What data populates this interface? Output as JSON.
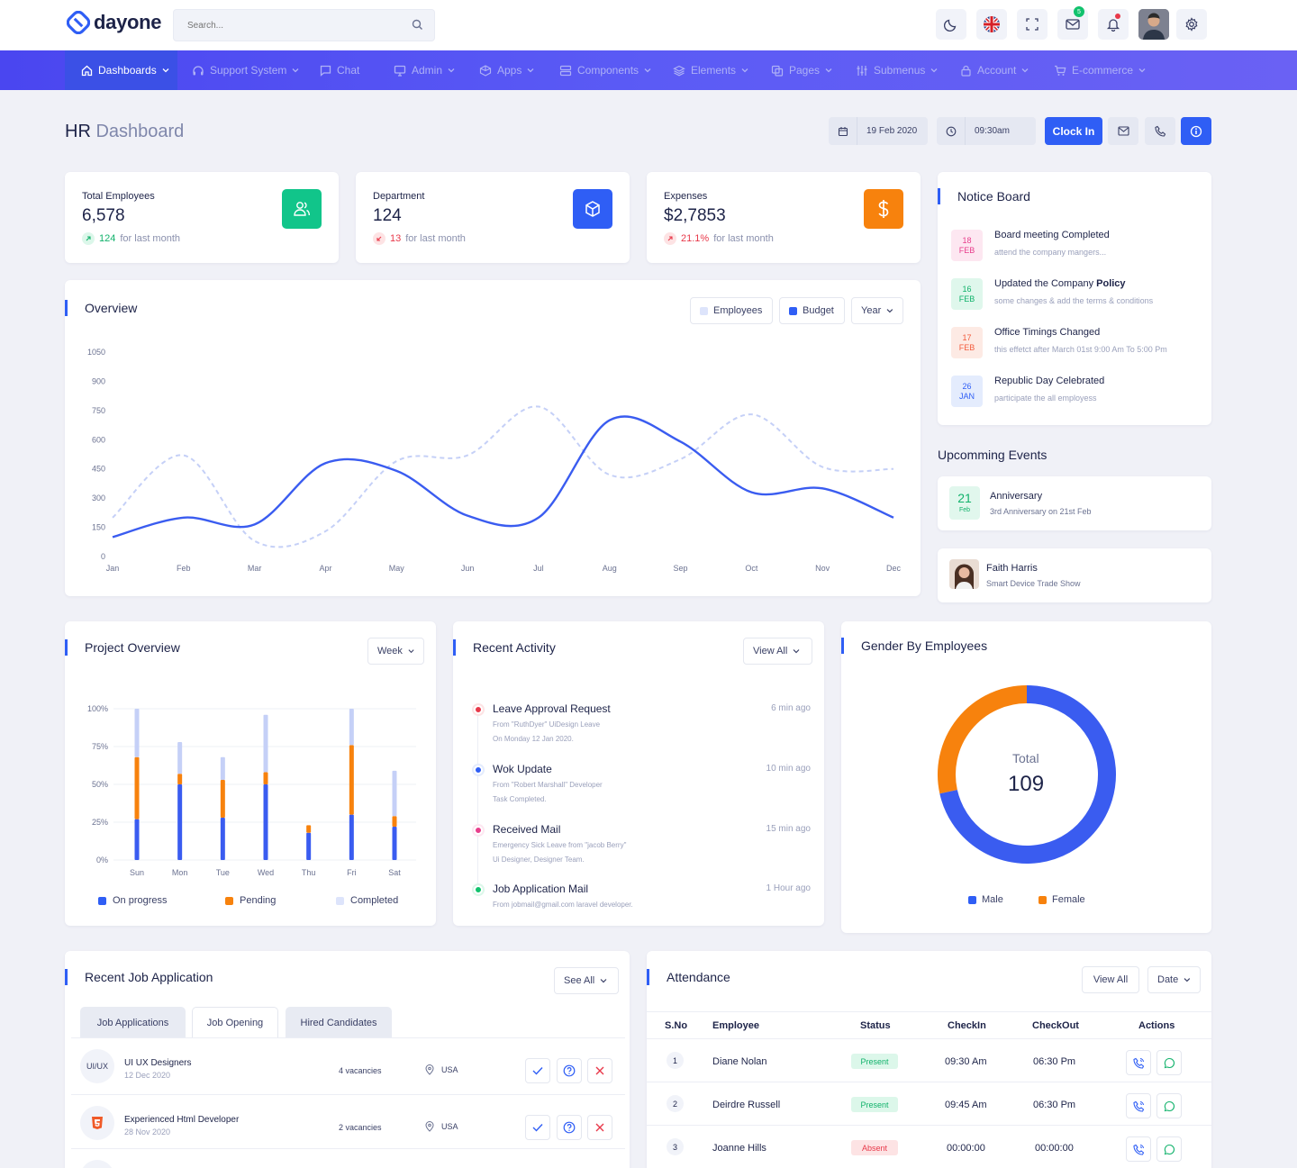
{
  "header": {
    "logo_text": "dayone",
    "search_placeholder": "Search...",
    "mail_badge": "5",
    "icons": [
      "moon-icon",
      "flag-uk-icon",
      "fullscreen-icon",
      "mail-icon",
      "bell-icon",
      "avatar",
      "gear-icon"
    ]
  },
  "nav": {
    "items": [
      {
        "label": "Dashboards",
        "icon": "home-icon",
        "active": true
      },
      {
        "label": "Support System",
        "icon": "headset-icon"
      },
      {
        "label": "Chat",
        "icon": "chat-icon"
      },
      {
        "label": "Admin",
        "icon": "monitor-icon"
      },
      {
        "label": "Apps",
        "icon": "apps-icon"
      },
      {
        "label": "Components",
        "icon": "layers-icon"
      },
      {
        "label": "Elements",
        "icon": "stack-icon"
      },
      {
        "label": "Pages",
        "icon": "pages-icon"
      },
      {
        "label": "Submenus",
        "icon": "sliders-icon"
      },
      {
        "label": "Account",
        "icon": "lock-icon"
      },
      {
        "label": "E-commerce",
        "icon": "cart-icon"
      }
    ]
  },
  "page": {
    "title_main": "HR",
    "title_rest": "Dashboard",
    "date": "19 Feb 2020",
    "time": "09:30am",
    "clock_in": "Clock In"
  },
  "stats": [
    {
      "label": "Total Employees",
      "value": "6,578",
      "delta": "124",
      "delta_suffix": "for last month",
      "trend": "up",
      "color": "#11c58a"
    },
    {
      "label": "Department",
      "value": "124",
      "delta": "13",
      "delta_suffix": "for last month",
      "trend": "down",
      "color": "#2f5ef5"
    },
    {
      "label": "Expenses",
      "value": "$2,7853",
      "delta": "21.1%",
      "delta_suffix": "for last month",
      "trend": "up-red",
      "color": "#f7820d"
    }
  ],
  "overview": {
    "title": "Overview",
    "legend_employees": "Employees",
    "legend_budget": "Budget",
    "range": "Year"
  },
  "chart_data": [
    {
      "type": "line",
      "title": "Overview",
      "categories": [
        "Jan",
        "Feb",
        "Mar",
        "Apr",
        "May",
        "Jun",
        "Jul",
        "Aug",
        "Sep",
        "Oct",
        "Nov",
        "Dec"
      ],
      "ylim": [
        0,
        1050
      ],
      "yticks": [
        0,
        150,
        300,
        450,
        600,
        750,
        900,
        1050
      ],
      "series": [
        {
          "name": "Budget",
          "color": "#3a5cf0",
          "dashed": false,
          "values": [
            100,
            200,
            165,
            480,
            440,
            210,
            200,
            700,
            590,
            330,
            350,
            200
          ]
        },
        {
          "name": "Employees",
          "color": "#c5d0f7",
          "dashed": true,
          "values": [
            200,
            520,
            80,
            130,
            490,
            520,
            770,
            420,
            500,
            730,
            460,
            450
          ]
        }
      ]
    },
    {
      "type": "bar",
      "title": "Project Overview",
      "categories": [
        "Sun",
        "Mon",
        "Tue",
        "Wed",
        "Thu",
        "Fri",
        "Sat"
      ],
      "ylim": [
        0,
        100
      ],
      "yticks": [
        "0%",
        "25%",
        "50%",
        "75%",
        "100%"
      ],
      "series": [
        {
          "name": "On progress",
          "color": "#3a5cf0",
          "values": [
            27,
            50,
            28,
            50,
            18,
            30,
            22
          ]
        },
        {
          "name": "Pending",
          "color": "#f7820d",
          "values": [
            41,
            7,
            25,
            8,
            5,
            46,
            7
          ]
        },
        {
          "name": "Completed",
          "color": "#c5d0f7",
          "values": [
            32,
            21,
            15,
            38,
            0,
            24,
            30
          ]
        }
      ]
    },
    {
      "type": "pie",
      "title": "Gender By Employees",
      "center_label": "Total",
      "center_value": "109",
      "series": [
        {
          "name": "Male",
          "color": "#3a5cf0",
          "value": 78
        },
        {
          "name": "Female",
          "color": "#f7820d",
          "value": 31
        }
      ]
    }
  ],
  "notice": {
    "title": "Notice Board",
    "items": [
      {
        "day": "18",
        "month": "FEB",
        "title": "Board meeting Completed",
        "sub": "attend the company mangers...",
        "bg": "#fde7f1",
        "fg": "#e83e8c"
      },
      {
        "day": "16",
        "month": "FEB",
        "title": "Updated the Company",
        "title_bold": "Policy",
        "sub": "some changes & add the terms & conditions",
        "bg": "#dff7ec",
        "fg": "#11b26b"
      },
      {
        "day": "17",
        "month": "FEB",
        "title": "Office Timings Changed",
        "sub": "this effetct after March 01st 9:00 Am To 5:00 Pm",
        "bg": "#fdeae4",
        "fg": "#f25c3d"
      },
      {
        "day": "26",
        "month": "JAN",
        "title": "Republic Day Celebrated",
        "sub": "participate the all employess",
        "bg": "#e4ecfd",
        "fg": "#2f5ef5"
      }
    ]
  },
  "events": {
    "title": "Upcomming Events",
    "anniversary": {
      "day": "21",
      "month": "Feb",
      "title": "Anniversary",
      "sub": "3rd Anniversary on 21st Feb"
    },
    "person": {
      "name": "Faith Harris",
      "sub": "Smart Device Trade Show"
    }
  },
  "project": {
    "title": "Project Overview",
    "range": "Week",
    "legend": [
      "On progress",
      "Pending",
      "Completed"
    ]
  },
  "activity": {
    "title": "Recent Activity",
    "view_all": "View All",
    "items": [
      {
        "title": "Leave Approval Request",
        "sub1": "From \"RuthDyer\" UiDesign Leave",
        "sub2": "On Monday 12 Jan 2020.",
        "time": "6 min ago",
        "color": "#e8394a"
      },
      {
        "title": "Wok Update",
        "sub1": "From \"Robert Marshall\" Developer",
        "sub2": "Task Completed.",
        "time": "10 min ago",
        "color": "#2f5ef5"
      },
      {
        "title": "Received Mail",
        "sub1": "Emergency Sick Leave from \"jacob Berry\"",
        "sub2": "Ui Designer, Designer Team.",
        "time": "15 min ago",
        "color": "#e83e8c"
      },
      {
        "title": "Job Application Mail",
        "sub1": "From jobmail@gmail.com laravel developer.",
        "sub2": "",
        "time": "1 Hour ago",
        "color": "#11c26d"
      }
    ]
  },
  "gender": {
    "title": "Gender By Employees",
    "legend": [
      "Male",
      "Female"
    ]
  },
  "jobs": {
    "title": "Recent Job Application",
    "see_all": "See All",
    "tabs": [
      "Job Applications",
      "Job Opening",
      "Hired Candidates"
    ],
    "rows": [
      {
        "avatar": "UI/UX",
        "name": "UI UX Designers",
        "date": "12 Dec 2020",
        "vacancies": "4 vacancies",
        "location": "USA"
      },
      {
        "avatar": "html5",
        "name": "Experienced Html Developer",
        "date": "28 Nov 2020",
        "vacancies": "2 vacancies",
        "location": "USA"
      }
    ]
  },
  "attendance": {
    "title": "Attendance",
    "view_all": "View All",
    "range": "Date",
    "headers": [
      "S.No",
      "Employee",
      "Status",
      "CheckIn",
      "CheckOut",
      "Actions"
    ],
    "rows": [
      {
        "no": "1",
        "name": "Diane Nolan",
        "status": "Present",
        "checkin": "09:30 Am",
        "checkout": "06:30 Pm"
      },
      {
        "no": "2",
        "name": "Deirdre Russell",
        "status": "Present",
        "checkin": "09:45 Am",
        "checkout": "06:30 Pm"
      },
      {
        "no": "3",
        "name": "Joanne Hills",
        "status": "Absent",
        "checkin": "00:00:00",
        "checkout": "00:00:00"
      }
    ]
  }
}
